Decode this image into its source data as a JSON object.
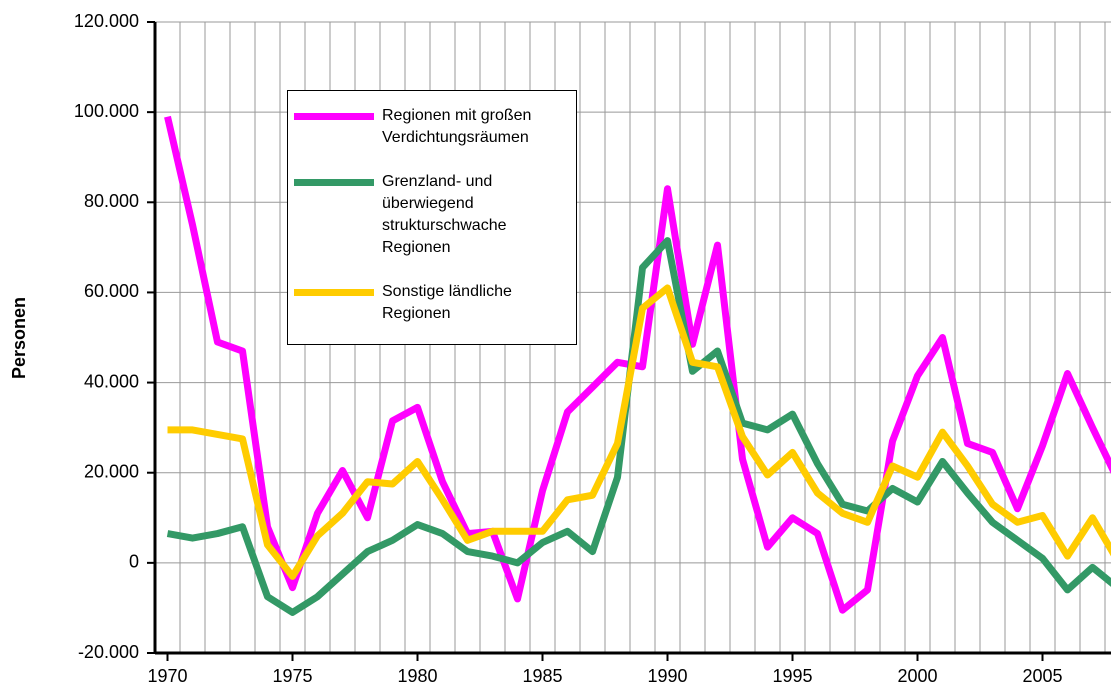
{
  "chart_data": {
    "type": "line",
    "y_label": "Personen",
    "x": [
      1970,
      1971,
      1972,
      1973,
      1974,
      1975,
      1976,
      1977,
      1978,
      1979,
      1980,
      1981,
      1982,
      1983,
      1984,
      1985,
      1986,
      1987,
      1988,
      1989,
      1990,
      1991,
      1992,
      1993,
      1994,
      1995,
      1996,
      1997,
      1998,
      1999,
      2000,
      2001,
      2002,
      2003,
      2004,
      2005,
      2006,
      2007,
      2008
    ],
    "series": [
      {
        "name": "Regionen mit großen Verdichtungsräumen",
        "color": "#ff00ff",
        "values": [
          99000,
          75000,
          49000,
          47000,
          8000,
          -5500,
          11000,
          20500,
          10000,
          31500,
          34500,
          18000,
          6500,
          7000,
          -8000,
          16000,
          33500,
          39000,
          44500,
          43500,
          83000,
          48500,
          70500,
          23000,
          3500,
          10000,
          6500,
          -10500,
          -6000,
          27000,
          41500,
          50000,
          26500,
          24500,
          12000,
          26000,
          42000,
          30000,
          18500
        ]
      },
      {
        "name": "Grenzland- und überwiegend strukturschwache Regionen",
        "color": "#339966",
        "values": [
          6500,
          5500,
          6500,
          8000,
          -7500,
          -11000,
          -7500,
          -2500,
          2500,
          5000,
          8500,
          6500,
          2500,
          1500,
          0,
          4500,
          7000,
          2500,
          19000,
          65500,
          71500,
          42500,
          47000,
          31000,
          29500,
          33000,
          22000,
          13000,
          11500,
          16500,
          13500,
          22500,
          15500,
          9000,
          5000,
          1000,
          -6000,
          -1000,
          -5500
        ]
      },
      {
        "name": "Sonstige ländliche Regionen",
        "color": "#ffcc00",
        "values": [
          29500,
          29500,
          28500,
          27500,
          4000,
          -3000,
          6000,
          11000,
          18000,
          17500,
          22500,
          14000,
          5000,
          7000,
          7000,
          7000,
          14000,
          15000,
          26500,
          56500,
          61000,
          44500,
          43500,
          28000,
          19500,
          24500,
          15500,
          11000,
          9000,
          21500,
          19000,
          29000,
          21500,
          13000,
          9000,
          10500,
          1500,
          10000,
          500
        ]
      }
    ],
    "xlim": [
      1969.5,
      2008.5
    ],
    "xticks": [
      1970,
      1975,
      1980,
      1985,
      1990,
      1995,
      2000,
      2005
    ],
    "ylim": [
      -20000,
      120000
    ],
    "yticks": [
      {
        "value": -20000,
        "label": "-20.000"
      },
      0,
      {
        "value": 20000,
        "label": "20.000"
      },
      {
        "value": 40000,
        "label": "40.000"
      },
      {
        "value": 60000,
        "label": "60.000"
      },
      {
        "value": 80000,
        "label": "80.000"
      },
      {
        "value": 100000,
        "label": "100.000"
      },
      {
        "value": 120000,
        "label": "120.000"
      }
    ],
    "grid": true,
    "line_width": 7
  }
}
